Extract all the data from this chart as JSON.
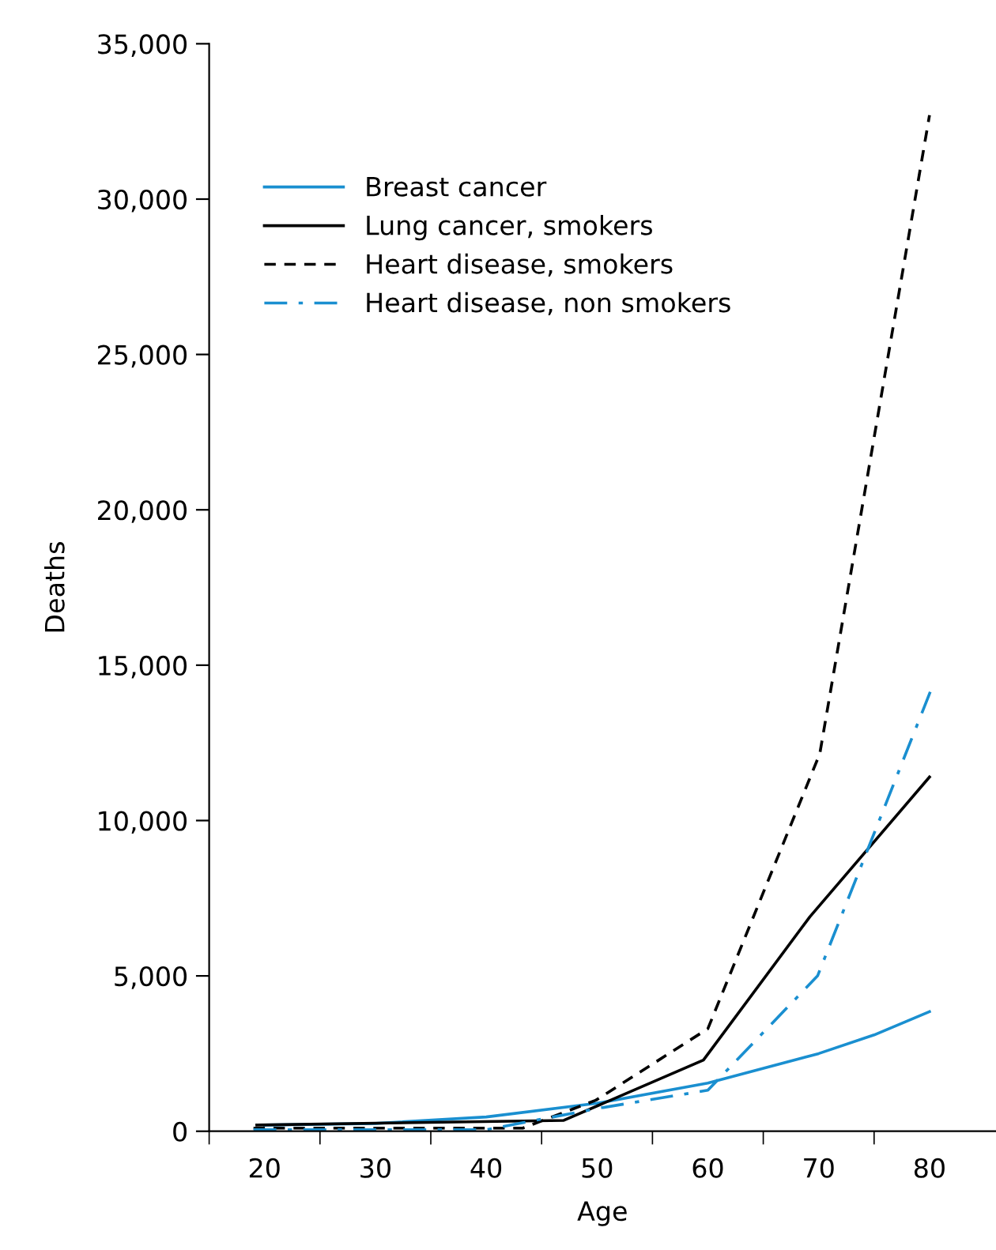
{
  "chart_data": {
    "type": "line",
    "xlabel": "Age",
    "ylabel": "Deaths",
    "xlim": [
      15,
      86
    ],
    "ylim": [
      0,
      35000
    ],
    "xticks": [
      {
        "value": 15,
        "label": null
      },
      {
        "value": 20,
        "label": "20"
      },
      {
        "value": 25,
        "label": null
      },
      {
        "value": 30,
        "label": "30"
      },
      {
        "value": 35,
        "label": null
      },
      {
        "value": 40,
        "label": "40"
      },
      {
        "value": 45,
        "label": null
      },
      {
        "value": 50,
        "label": "50"
      },
      {
        "value": 55,
        "label": null
      },
      {
        "value": 60,
        "label": "60"
      },
      {
        "value": 65,
        "label": null
      },
      {
        "value": 70,
        "label": "70"
      },
      {
        "value": 75,
        "label": null
      },
      {
        "value": 80,
        "label": "80"
      }
    ],
    "yticks": [
      {
        "value": 0,
        "label": "0"
      },
      {
        "value": 5000,
        "label": "5,000"
      },
      {
        "value": 10000,
        "label": "10,000"
      },
      {
        "value": 15000,
        "label": "15,000"
      },
      {
        "value": 20000,
        "label": "20,000"
      },
      {
        "value": 25000,
        "label": "25,000"
      },
      {
        "value": 30000,
        "label": "30,000"
      },
      {
        "value": 35000,
        "label": "35,000"
      }
    ],
    "grid": false,
    "legend": "top left",
    "marker": "none",
    "series": [
      {
        "name": "Breast cancer",
        "color": "#1a8fd0",
        "line_style": "solid",
        "x": [
          20,
          30,
          40,
          50,
          60,
          70,
          75,
          80
        ],
        "values": [
          200,
          250,
          460,
          900,
          1550,
          2500,
          3100,
          3850
        ]
      },
      {
        "name": "Lung cancer, smokers",
        "color": "#000000",
        "line_style": "solid",
        "x": [
          19.3,
          47,
          59.6,
          69.2,
          80
        ],
        "values": [
          200,
          350,
          2290,
          6900,
          11400
        ]
      },
      {
        "name": "Heart disease, smokers",
        "color": "#000000",
        "line_style": "dashed",
        "x": [
          19,
          43.3,
          49.9,
          60,
          70.1,
          80
        ],
        "values": [
          100,
          100,
          1000,
          3300,
          12150,
          32700
        ]
      },
      {
        "name": "Heart disease, non smokers",
        "color": "#1a8fd0",
        "line_style": "dashdot",
        "x": [
          19,
          40,
          50.3,
          60,
          69.9,
          80.3
        ],
        "values": [
          50,
          50,
          750,
          1320,
          5000,
          14350
        ]
      }
    ]
  }
}
